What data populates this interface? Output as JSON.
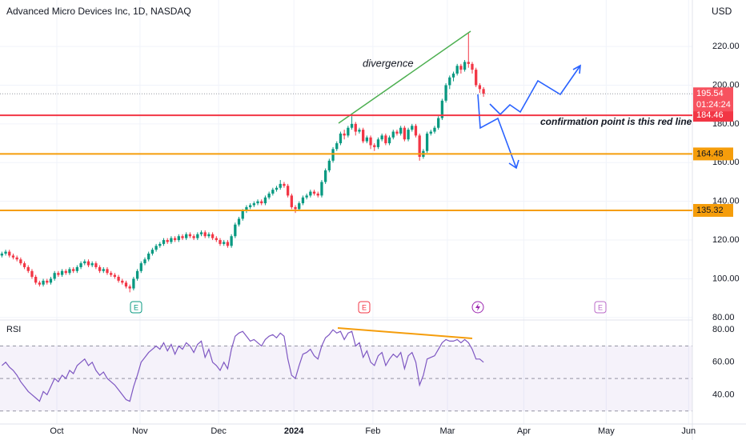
{
  "chart_data": {
    "type": "candlestick",
    "title": "Advanced Micro Devices Inc, 1D, NASDAQ",
    "currency": "USD",
    "countdown": "01:24:24",
    "ylim": [
      78.7,
      244
    ],
    "yticks": [
      {
        "value": 80,
        "label": "80.00"
      },
      {
        "value": 100,
        "label": "100.00"
      },
      {
        "value": 120,
        "label": "120.00"
      },
      {
        "value": 140,
        "label": "140.00"
      },
      {
        "value": 160,
        "label": "160.00"
      },
      {
        "value": 180,
        "label": "180.00"
      },
      {
        "value": 200,
        "label": "200.00"
      },
      {
        "value": 220,
        "label": "220.00"
      }
    ],
    "xlim": [
      -0.5,
      183.5
    ],
    "xticks": [
      {
        "value": 14.6,
        "label": "Oct"
      },
      {
        "value": 36.7,
        "label": "Nov"
      },
      {
        "value": 57.6,
        "label": "Dec"
      },
      {
        "value": 77.6,
        "label": "2024"
      },
      {
        "value": 98.6,
        "label": "Feb"
      },
      {
        "value": 118.4,
        "label": "Mar"
      },
      {
        "value": 138.7,
        "label": "Apr"
      },
      {
        "value": 160.6,
        "label": "May"
      },
      {
        "value": 182.5,
        "label": "Jun"
      }
    ],
    "grid": true,
    "up_color": "#089981",
    "down_color": "#f23645",
    "levels": [
      {
        "value": 184.46,
        "color": "#f23645"
      },
      {
        "value": 164.48,
        "color": "#f59d0b"
      },
      {
        "value": 135.32,
        "color": "#f59d0b"
      }
    ],
    "annotations": [
      "divergence",
      "confirmation point is this red line"
    ],
    "events": [
      "E",
      "E",
      "E"
    ],
    "candles": [
      [
        112,
        114,
        111,
        113
      ],
      [
        113,
        115,
        112,
        114
      ],
      [
        114,
        115,
        111,
        112
      ],
      [
        112,
        113,
        110,
        111
      ],
      [
        111,
        112,
        109,
        110
      ],
      [
        110,
        111,
        107,
        108
      ],
      [
        108,
        109,
        105,
        106
      ],
      [
        106,
        107,
        103,
        104
      ],
      [
        104,
        105,
        100,
        101
      ],
      [
        101,
        102,
        97,
        98
      ],
      [
        98,
        99,
        96,
        97
      ],
      [
        97,
        100,
        96,
        99
      ],
      [
        99,
        100,
        97,
        98
      ],
      [
        98,
        101,
        97,
        100
      ],
      [
        100,
        104,
        99,
        103
      ],
      [
        103,
        104,
        101,
        102
      ],
      [
        102,
        105,
        101,
        104
      ],
      [
        104,
        105,
        102,
        103
      ],
      [
        103,
        106,
        102,
        105
      ],
      [
        105,
        106,
        103,
        104
      ],
      [
        104,
        107,
        103,
        106
      ],
      [
        106,
        109,
        105,
        108
      ],
      [
        108,
        110,
        107,
        109
      ],
      [
        109,
        110,
        106,
        107
      ],
      [
        107,
        109,
        106,
        108
      ],
      [
        108,
        109,
        105,
        106
      ],
      [
        106,
        107,
        103,
        104
      ],
      [
        104,
        106,
        103,
        105
      ],
      [
        105,
        106,
        102,
        103
      ],
      [
        103,
        104,
        101,
        102
      ],
      [
        102,
        103,
        100,
        101
      ],
      [
        101,
        102,
        98,
        99
      ],
      [
        99,
        100,
        97,
        98
      ],
      [
        98,
        99,
        95,
        96
      ],
      [
        96,
        97,
        93,
        95
      ],
      [
        95,
        101,
        94,
        100
      ],
      [
        100,
        105,
        99,
        104
      ],
      [
        104,
        109,
        103,
        108
      ],
      [
        108,
        111,
        107,
        110
      ],
      [
        110,
        114,
        109,
        113
      ],
      [
        113,
        116,
        112,
        115
      ],
      [
        115,
        118,
        114,
        117
      ],
      [
        117,
        119,
        116,
        118
      ],
      [
        118,
        121,
        117,
        120
      ],
      [
        120,
        121,
        118,
        119
      ],
      [
        119,
        122,
        118,
        121
      ],
      [
        121,
        122,
        119,
        120
      ],
      [
        120,
        123,
        119,
        122
      ],
      [
        122,
        123,
        120,
        121
      ],
      [
        121,
        124,
        120,
        123
      ],
      [
        123,
        124,
        121,
        122
      ],
      [
        122,
        123,
        120,
        121
      ],
      [
        121,
        124,
        120,
        123
      ],
      [
        123,
        125,
        122,
        124
      ],
      [
        124,
        125,
        121,
        122
      ],
      [
        122,
        124,
        121,
        123
      ],
      [
        123,
        124,
        120,
        121
      ],
      [
        121,
        122,
        119,
        120
      ],
      [
        120,
        121,
        117,
        118
      ],
      [
        118,
        120,
        117,
        119
      ],
      [
        119,
        120,
        116,
        117
      ],
      [
        117,
        123,
        116,
        122
      ],
      [
        122,
        129,
        121,
        128
      ],
      [
        128,
        132,
        127,
        131
      ],
      [
        131,
        136,
        130,
        135
      ],
      [
        135,
        138,
        134,
        137
      ],
      [
        137,
        139,
        136,
        138
      ],
      [
        138,
        140,
        137,
        139
      ],
      [
        139,
        141,
        138,
        140
      ],
      [
        140,
        141,
        138,
        139
      ],
      [
        139,
        143,
        138,
        142
      ],
      [
        142,
        145,
        141,
        144
      ],
      [
        144,
        147,
        143,
        146
      ],
      [
        146,
        148,
        145,
        147
      ],
      [
        147,
        151,
        146,
        149
      ],
      [
        149,
        150,
        147,
        148
      ],
      [
        148,
        149,
        142,
        143
      ],
      [
        143,
        144,
        136,
        137
      ],
      [
        137,
        138,
        134,
        136
      ],
      [
        136,
        140,
        135,
        139
      ],
      [
        139,
        143,
        138,
        142
      ],
      [
        142,
        144,
        141,
        143
      ],
      [
        143,
        146,
        142,
        145
      ],
      [
        145,
        146,
        143,
        144
      ],
      [
        144,
        145,
        142,
        143
      ],
      [
        143,
        151,
        142,
        150
      ],
      [
        150,
        157,
        149,
        156
      ],
      [
        156,
        162,
        155,
        161
      ],
      [
        161,
        168,
        160,
        167
      ],
      [
        167,
        171,
        166,
        170
      ],
      [
        170,
        176,
        169,
        175
      ],
      [
        175,
        177,
        172,
        174
      ],
      [
        174,
        179,
        173,
        178
      ],
      [
        178,
        184,
        177,
        180
      ],
      [
        180,
        181,
        174,
        176
      ],
      [
        176,
        178,
        175,
        177
      ],
      [
        177,
        178,
        170,
        171
      ],
      [
        171,
        174,
        170,
        173
      ],
      [
        173,
        174,
        167,
        169
      ],
      [
        169,
        170,
        166,
        168
      ],
      [
        168,
        173,
        167,
        172
      ],
      [
        172,
        175,
        171,
        174
      ],
      [
        174,
        175,
        169,
        170
      ],
      [
        170,
        174,
        169,
        173
      ],
      [
        173,
        177,
        172,
        176
      ],
      [
        176,
        177,
        174,
        175
      ],
      [
        175,
        179,
        174,
        178
      ],
      [
        178,
        179,
        171,
        172
      ],
      [
        172,
        178,
        171,
        177
      ],
      [
        177,
        180,
        176,
        179
      ],
      [
        179,
        180,
        173,
        174
      ],
      [
        174,
        175,
        161,
        163
      ],
      [
        163,
        167,
        162,
        166
      ],
      [
        166,
        176,
        165,
        175
      ],
      [
        175,
        177,
        174,
        176
      ],
      [
        176,
        179,
        175,
        178
      ],
      [
        178,
        184,
        177,
        183
      ],
      [
        183,
        193,
        182,
        192
      ],
      [
        192,
        201,
        191,
        200
      ],
      [
        200,
        205,
        198,
        204
      ],
      [
        204,
        207,
        202,
        206
      ],
      [
        206,
        211,
        205,
        210
      ],
      [
        210,
        211,
        206,
        208
      ],
      [
        208,
        213,
        207,
        212
      ],
      [
        212,
        227,
        209,
        211
      ],
      [
        211,
        212,
        206,
        208
      ],
      [
        208,
        209,
        199,
        200
      ],
      [
        200,
        201,
        196,
        198
      ],
      [
        198,
        199,
        194,
        195.54
      ]
    ],
    "rsi": {
      "name": "RSI",
      "color": "#7e57c2",
      "ylim": [
        22,
        86
      ],
      "yticks": [
        {
          "value": 40,
          "label": "40.00"
        },
        {
          "value": 60,
          "label": "60.00"
        },
        {
          "value": 80,
          "label": "80.00"
        }
      ],
      "levels": [
        70,
        50,
        30
      ],
      "values": [
        58,
        60,
        57,
        55,
        52,
        48,
        45,
        42,
        40,
        38,
        36,
        42,
        40,
        45,
        50,
        48,
        52,
        50,
        55,
        53,
        58,
        60,
        62,
        58,
        60,
        55,
        52,
        54,
        50,
        48,
        46,
        43,
        40,
        37,
        36,
        45,
        52,
        60,
        63,
        66,
        68,
        70,
        68,
        72,
        67,
        71,
        65,
        70,
        68,
        72,
        70,
        66,
        71,
        73,
        63,
        68,
        60,
        58,
        55,
        60,
        56,
        68,
        76,
        78,
        79,
        76,
        73,
        74,
        72,
        70,
        74,
        76,
        77,
        75,
        78,
        76,
        62,
        52,
        50,
        58,
        65,
        66,
        68,
        64,
        62,
        70,
        75,
        77,
        80,
        78,
        79,
        74,
        78,
        79,
        70,
        72,
        63,
        67,
        60,
        58,
        64,
        66,
        58,
        62,
        65,
        63,
        66,
        56,
        64,
        66,
        60,
        46,
        52,
        62,
        63,
        64,
        68,
        72,
        74,
        73,
        73,
        74,
        72,
        74,
        72,
        68,
        62,
        62,
        60
      ]
    }
  }
}
